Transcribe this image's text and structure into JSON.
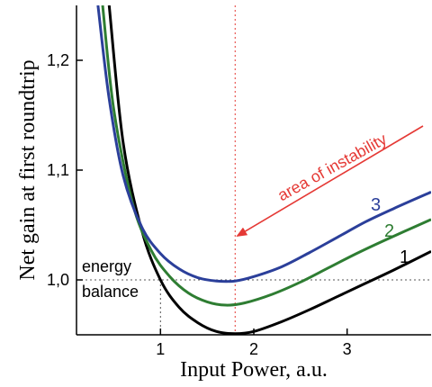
{
  "chart_data": {
    "type": "line",
    "xlabel": "Input Power,  a.u.",
    "ylabel": "Net gain at first roundtrip",
    "xlim": [
      0.1,
      3.9
    ],
    "ylim": [
      0.95,
      1.25
    ],
    "xticks": [
      "1",
      "2",
      "3"
    ],
    "xtick_values": [
      1,
      2,
      3
    ],
    "yticks": [
      "1,0",
      "1,1",
      "1,2"
    ],
    "ytick_values": [
      1.0,
      1.1,
      1.2
    ],
    "grid": false,
    "series": [
      {
        "name": "1",
        "color": "#000000",
        "x": [
          0.45,
          0.6,
          0.8,
          1.0,
          1.2,
          1.4,
          1.6,
          1.8,
          2.0,
          2.3,
          2.6,
          2.9,
          3.2,
          3.5,
          3.9
        ],
        "y": [
          1.25,
          1.125,
          1.045,
          1.0,
          0.975,
          0.961,
          0.953,
          0.951,
          0.953,
          0.962,
          0.973,
          0.985,
          0.997,
          1.009,
          1.026
        ]
      },
      {
        "name": "2",
        "color": "#2e7d32",
        "x": [
          0.38,
          0.5,
          0.7,
          0.9,
          1.1,
          1.3,
          1.5,
          1.7,
          1.9,
          2.2,
          2.5,
          2.8,
          3.1,
          3.4,
          3.9
        ],
        "y": [
          1.25,
          1.155,
          1.07,
          1.027,
          1.003,
          0.988,
          0.98,
          0.977,
          0.979,
          0.987,
          0.998,
          1.011,
          1.024,
          1.036,
          1.055
        ]
      },
      {
        "name": "3",
        "color": "#2b3f9a",
        "x": [
          0.33,
          0.45,
          0.6,
          0.8,
          1.0,
          1.2,
          1.4,
          1.6,
          1.8,
          2.0,
          2.3,
          2.6,
          2.9,
          3.2,
          3.5,
          3.9
        ],
        "y": [
          1.25,
          1.165,
          1.095,
          1.048,
          1.024,
          1.01,
          1.002,
          0.999,
          0.999,
          1.003,
          1.012,
          1.025,
          1.039,
          1.053,
          1.065,
          1.08
        ]
      }
    ],
    "reference_lines": {
      "energy_balance_y": 1.0,
      "energy_balance_x": 1.0,
      "instability_x": 1.8
    },
    "annotations": {
      "energy_balance": "energy\nbalance",
      "energy_balance_line1": "energy",
      "energy_balance_line2": "balance",
      "instability": "area of instability"
    },
    "colors": {
      "instability": "#e53935",
      "axis": "#000000"
    }
  }
}
